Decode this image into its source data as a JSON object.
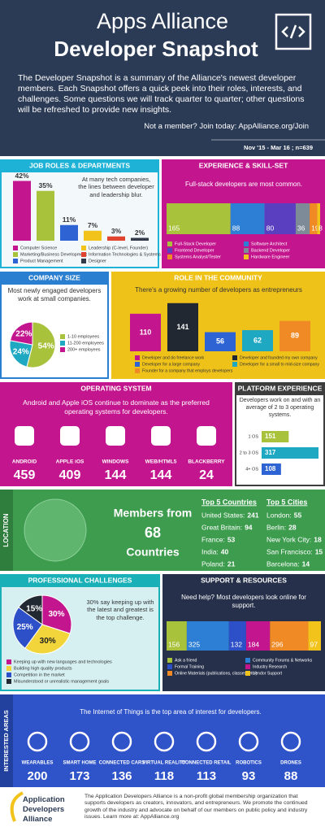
{
  "header": {
    "title": "Apps Alliance",
    "subtitle": "Developer Snapshot",
    "intro": "The Developer Snapshot is a summary of the Alliance's newest developer members.  Each Snapshot offers a quick peek into their roles, interests, and challenges. Some questions we will track quarter to quarter; other questions will be refreshed to provide new insights.",
    "join": "Not a member? Join today: AppAlliance.org/Join",
    "sample": "Nov '15 - Mar 16 ; n=639"
  },
  "job_roles": {
    "title": "JOB ROLES & DEPARTMENTS",
    "note": "At many tech companies, the lines between developer and leadership blur.",
    "categories": [
      "Computer Science",
      "Marketing/Business Development",
      "Product Management",
      "Leadership (C-level, Founder)",
      "Information Technologies & Systems",
      "Designer"
    ],
    "values": [
      42,
      35,
      11,
      7,
      3,
      2
    ],
    "value_labels": [
      "42%",
      "35%",
      "11%",
      "7%",
      "3%",
      "2%"
    ],
    "colors": [
      "#c3168e",
      "#a8c23c",
      "#2d63d2",
      "#f2c31b",
      "#e0442f",
      "#333a4a"
    ]
  },
  "experience": {
    "title": "EXPERIENCE & SKILL-SET",
    "note": "Full-stack developers are most common.",
    "categories": [
      "Full-Stack Developer",
      "Software Architect",
      "Frontend Developer",
      "Backend Developer",
      "Systems Analyst/Tester",
      "Hardware Engineer"
    ],
    "values": [
      165,
      88,
      80,
      36,
      19,
      8
    ],
    "colors": [
      "#a8c23c",
      "#2d7fd6",
      "#5a3fc0",
      "#7d8a98",
      "#f08a24",
      "#f2c31b"
    ]
  },
  "company_size": {
    "title": "COMPANY SIZE",
    "note": "Most newly engaged developers work at small companies.",
    "categories": [
      "1-10 employees",
      "11-200 employees",
      "200+ employees"
    ],
    "values": [
      54,
      24,
      22
    ],
    "value_labels": [
      "54%",
      "24%",
      "22%"
    ],
    "colors": [
      "#a8c23c",
      "#1fa8c2",
      "#c3168e"
    ]
  },
  "community": {
    "title": "ROLE IN THE COMMUNITY",
    "note": "There's a growing number of developers as entrepreneurs",
    "categories": [
      "Developer and do freelance work",
      "Developer and founded my own company",
      "Developer for a large company",
      "Developer for a small to mid-size company",
      "Founder for a company that employs developers"
    ],
    "values": [
      110,
      141,
      56,
      62,
      89
    ],
    "colors": [
      "#c3168e",
      "#222831",
      "#2d63d2",
      "#1fa8c2",
      "#f08a24"
    ]
  },
  "operating_system": {
    "title": "OPERATING SYSTEM",
    "note": "Android and Apple iOS continue to dominate as the preferred operating systems for developers.",
    "categories": [
      "ANDROID",
      "APPLE iOS",
      "WINDOWS",
      "WEB/HTML5",
      "BLACKBERRY"
    ],
    "values": [
      459,
      409,
      144,
      144,
      24
    ]
  },
  "platform": {
    "title": "PLATFORM EXPERIENCE",
    "note": "Developers work on and with an average of 2 to 3 operating systems.",
    "categories": [
      "1 OS",
      "2 to 3 OS",
      "4+ OS"
    ],
    "values": [
      151,
      317,
      108
    ],
    "colors": [
      "#a8c23c",
      "#1fa8c2",
      "#2d63d2"
    ]
  },
  "location": {
    "side_label": "LOCATION",
    "members_from": "Members from",
    "count": 68,
    "countries_word": "Countries",
    "countries_title": "Top 5 Countries",
    "countries": [
      {
        "name": "United States:",
        "value": 241
      },
      {
        "name": "Great Britain:",
        "value": 94
      },
      {
        "name": "France:",
        "value": 53
      },
      {
        "name": "India:",
        "value": 40
      },
      {
        "name": "Poland:",
        "value": 21
      }
    ],
    "cities_title": "Top 5 Cities",
    "cities": [
      {
        "name": "London:",
        "value": 55
      },
      {
        "name": "Berlin:",
        "value": 28
      },
      {
        "name": "New York City:",
        "value": 18
      },
      {
        "name": "San Francisco:",
        "value": 15
      },
      {
        "name": "Barcelona:",
        "value": 14
      }
    ]
  },
  "challenges": {
    "title": "PROFESSIONAL CHALLENGES",
    "note": "30% say keeping up with the latest and greatest is the top challenge.",
    "categories": [
      "Keeping up with new languages and technologies",
      "Building high quality products",
      "Competition in the market",
      "Misunderstood or unrealistic management goals"
    ],
    "values": [
      30,
      30,
      25,
      15
    ],
    "value_labels": [
      "30%",
      "30%",
      "25%",
      "15%"
    ],
    "colors": [
      "#c3168e",
      "#f2d53a",
      "#2d4fc8",
      "#222831"
    ]
  },
  "support": {
    "title": "SUPPORT & RESOURCES",
    "note": "Need help? Most developers look online for support.",
    "categories": [
      "Ask a friend",
      "Community Forums & Networks",
      "Formal Training",
      "Industry Research",
      "Online Materials (publications, classes, etc.)",
      "Vendor Support"
    ],
    "values": [
      156,
      325,
      132,
      184,
      296,
      97
    ],
    "colors": [
      "#a8c23c",
      "#2d7fd6",
      "#2d4fc8",
      "#c3168e",
      "#f08a24",
      "#f2c31b"
    ]
  },
  "interests": {
    "side_label": "INTERESTED AREAS",
    "note": "The Internet of Things is the top area of interest for developers.",
    "categories": [
      "WEARABLES",
      "SMART HOME",
      "CONNECTED CARS",
      "VIRTUAL REALITY",
      "CONNECTED RETAIL",
      "ROBOTICS",
      "DRONES"
    ],
    "values": [
      200,
      173,
      136,
      118,
      113,
      93,
      88
    ]
  },
  "footer": {
    "logo": "Application Developers Alliance",
    "text": "The Application Developers Alliance is a non-profit global membership organization that supports developers as creators, innovators, and entrepreneurs. We promote the continued growth of the industry and advocate on behalf of our members on public policy and industry issues. Learn more at: AppAlliance.org"
  }
}
